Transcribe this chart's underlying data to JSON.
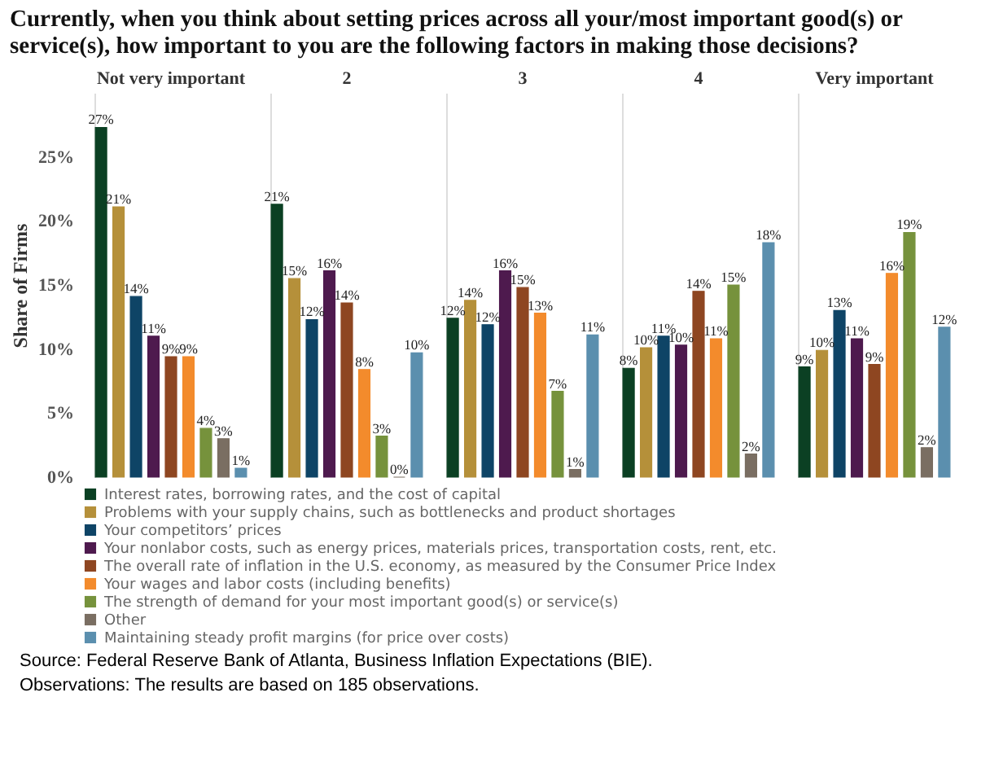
{
  "chart_data": {
    "type": "bar",
    "title": "Currently, when you think about setting prices across all your/most important good(s) or service(s), how important to you are the following factors in making those decisions?",
    "ylabel": "Share of Firms",
    "categories": [
      "Not very important",
      "2",
      "3",
      "4",
      "Very important"
    ],
    "series": [
      {
        "name": "Interest rates, borrowing rates, and the cost of capital",
        "color": "#0b4023",
        "values": [
          27.3,
          21.3,
          12.4,
          8.5,
          8.6
        ],
        "value_labels": [
          "27%",
          "21%",
          "12%",
          "8%",
          "9%"
        ]
      },
      {
        "name": "Problems with your supply chains, such as bottlenecks and product shortages",
        "color": "#b5903a",
        "values": [
          21.1,
          15.5,
          13.8,
          10.1,
          9.9
        ],
        "value_labels": [
          "21%",
          "15%",
          "14%",
          "10%",
          "10%"
        ]
      },
      {
        "name": "Your competitors’ prices",
        "color": "#0e4466",
        "values": [
          14.1,
          12.3,
          11.9,
          11.0,
          13.0
        ],
        "value_labels": [
          "14%",
          "12%",
          "12%",
          "11%",
          "13%"
        ]
      },
      {
        "name": "Your nonlabor costs, such as energy prices, materials prices, transportation costs, rent, etc.",
        "color": "#4e1a4e",
        "values": [
          11.0,
          16.1,
          16.1,
          10.3,
          10.8
        ],
        "value_labels": [
          "11%",
          "16%",
          "16%",
          "10%",
          "11%"
        ]
      },
      {
        "name": "The overall rate of inflation in the U.S. economy, as measured by the Consumer Price Index",
        "color": "#8e4621",
        "values": [
          9.4,
          13.6,
          14.8,
          14.5,
          8.8
        ],
        "value_labels": [
          "9%",
          "14%",
          "15%",
          "14%",
          "9%"
        ]
      },
      {
        "name": "Your wages and labor costs (including benefits)",
        "color": "#f38b2c",
        "values": [
          9.4,
          8.4,
          12.8,
          10.8,
          15.9
        ],
        "value_labels": [
          "9%",
          "8%",
          "13%",
          "11%",
          "16%"
        ]
      },
      {
        "name": "The strength of demand for your most important good(s) or service(s)",
        "color": "#76923c",
        "values": [
          3.8,
          3.2,
          6.7,
          15.0,
          19.1
        ],
        "value_labels": [
          "4%",
          "3%",
          "7%",
          "15%",
          "19%"
        ]
      },
      {
        "name": "Other",
        "color": "#7a6e62",
        "values": [
          3.0,
          0,
          0.6,
          1.8,
          2.3
        ],
        "value_labels": [
          "3%",
          "0%",
          "1%",
          "2%",
          "2%"
        ]
      },
      {
        "name": "Maintaining steady profit margins (for price over costs)",
        "color": "#5b8fae",
        "values": [
          0.7,
          9.7,
          11.1,
          18.3,
          11.7
        ],
        "value_labels": [
          "1%",
          "10%",
          "11%",
          "18%",
          "12%"
        ]
      }
    ],
    "ylim": [
      0,
      30
    ],
    "yticks": [
      {
        "value": 0,
        "label": "0%"
      },
      {
        "value": 5,
        "label": "5%"
      },
      {
        "value": 10,
        "label": "10%"
      },
      {
        "value": 15,
        "label": "15%"
      },
      {
        "value": 20,
        "label": "20%"
      },
      {
        "value": 25,
        "label": "25%"
      }
    ],
    "legend": "bottom",
    "annotations": [
      "Source: Federal Reserve Bank of Atlanta, Business Inflation Expectations (BIE).",
      "Observations: The results are based on 185 observations."
    ]
  }
}
